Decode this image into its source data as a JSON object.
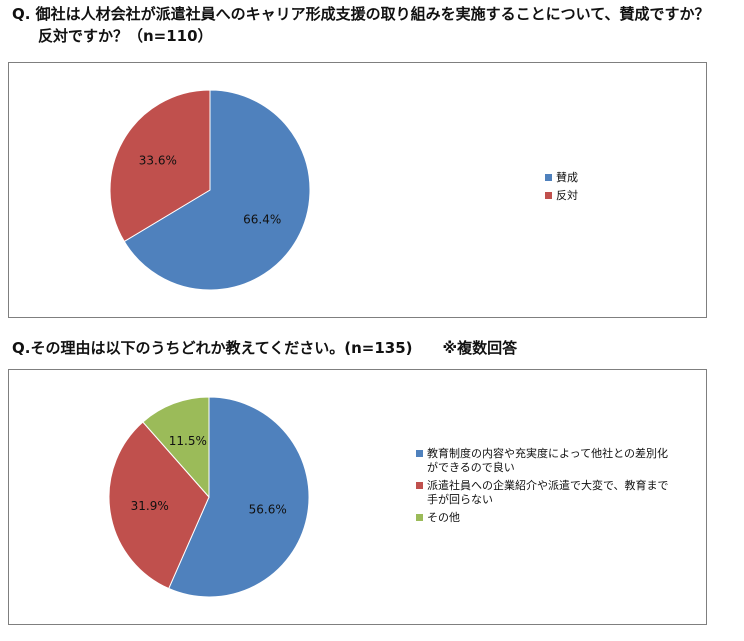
{
  "questions": {
    "q1_line1": "Q. 御社は人材会社が派遣社員へのキャリア形成支援の取り組みを実施することについて、賛成ですか？",
    "q1_line2": "反対ですか？（n=110）",
    "q2": "Q.その理由は以下のうちどれか教えてください。(n=135)　　※複数回答"
  },
  "chart_data": [
    {
      "type": "pie",
      "labels": [
        "賛成",
        "反対"
      ],
      "values": [
        66.4,
        33.6
      ],
      "data_labels": [
        "66.4%",
        "33.6%"
      ],
      "colors": [
        "#4f81bd",
        "#c0504d"
      ],
      "start_angle_deg": 0,
      "direction": "clockwise",
      "legend_position": "right"
    },
    {
      "type": "pie",
      "labels": [
        "教育制度の内容や充実度によって他社との差別化ができるので良い",
        "派遣社員への企業紹介や派遣で大変で、教育まで手が回らない",
        "その他"
      ],
      "legend_lines": [
        [
          "教育制度の内容や充実度によって他社との差別化",
          "ができるので良い"
        ],
        [
          "派遣社員への企業紹介や派遣で大変で、教育まで",
          "手が回らない"
        ],
        [
          "その他"
        ]
      ],
      "values": [
        56.6,
        31.9,
        11.5
      ],
      "data_labels": [
        "56.6%",
        "31.9%",
        "11.5%"
      ],
      "colors": [
        "#4f81bd",
        "#c0504d",
        "#9bbb59"
      ],
      "start_angle_deg": 0,
      "direction": "clockwise",
      "legend_position": "right"
    }
  ]
}
